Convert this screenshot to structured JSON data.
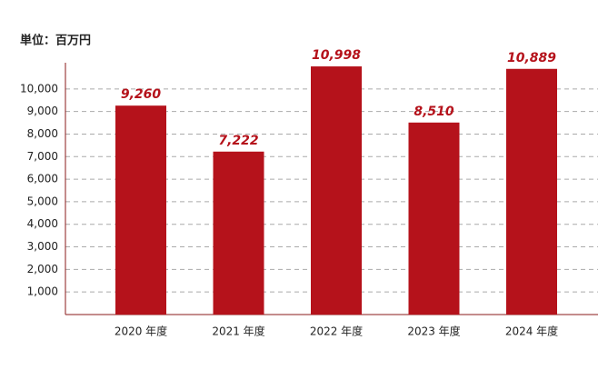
{
  "chart_data": {
    "type": "bar",
    "unit_label": "単位：百万円",
    "categories": [
      "2020 年度",
      "2021 年度",
      "2022 年度",
      "2023 年度",
      "2024 年度"
    ],
    "values": [
      9260,
      7222,
      10998,
      8510,
      10889
    ],
    "value_labels": [
      "9,260",
      "7,222",
      "10,998",
      "8,510",
      "10,889"
    ],
    "color": "#b5121b",
    "ylim": [
      0,
      11000
    ],
    "yticks": [
      {
        "value": 1000,
        "label": "1,000"
      },
      {
        "value": 2000,
        "label": "2,000"
      },
      {
        "value": 3000,
        "label": "3,000"
      },
      {
        "value": 4000,
        "label": "4,000"
      },
      {
        "value": 5000,
        "label": "5,000"
      },
      {
        "value": 6000,
        "label": "6,000"
      },
      {
        "value": 7000,
        "label": "7,000"
      },
      {
        "value": 8000,
        "label": "8,000"
      },
      {
        "value": 9000,
        "label": "9,000"
      },
      {
        "value": 10000,
        "label": "10,000"
      }
    ],
    "grid": true
  }
}
